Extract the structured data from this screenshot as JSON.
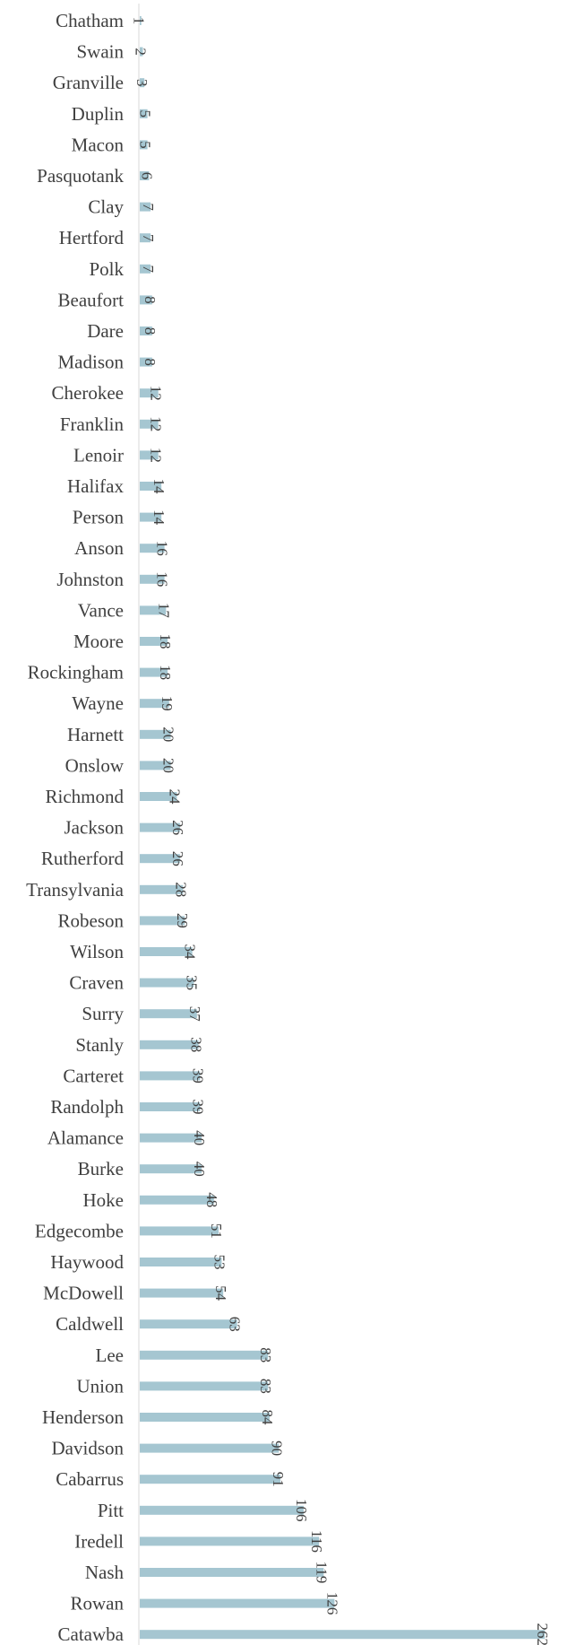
{
  "chart_data": {
    "type": "bar",
    "orientation": "horizontal",
    "categories": [
      "Chatham",
      "Swain",
      "Granville",
      "Duplin",
      "Macon",
      "Pasquotank",
      "Clay",
      "Hertford",
      "Polk",
      "Beaufort",
      "Dare",
      "Madison",
      "Cherokee",
      "Franklin",
      "Lenoir",
      "Halifax",
      "Person",
      "Anson",
      "Johnston",
      "Vance",
      "Moore",
      "Rockingham",
      "Wayne",
      "Harnett",
      "Onslow",
      "Richmond",
      "Jackson",
      "Rutherford",
      "Transylvania",
      "Robeson",
      "Wilson",
      "Craven",
      "Surry",
      "Stanly",
      "Carteret",
      "Randolph",
      "Alamance",
      "Burke",
      "Hoke",
      "Edgecombe",
      "Haywood",
      "McDowell",
      "Caldwell",
      "Lee",
      "Union",
      "Henderson",
      "Davidson",
      "Cabarrus",
      "Pitt",
      "Iredell",
      "Nash",
      "Rowan",
      "Catawba"
    ],
    "values": [
      1,
      2,
      3,
      5,
      5,
      6,
      7,
      7,
      7,
      8,
      8,
      8,
      12,
      12,
      12,
      14,
      14,
      16,
      16,
      17,
      18,
      18,
      19,
      20,
      20,
      24,
      26,
      26,
      28,
      29,
      34,
      35,
      37,
      38,
      39,
      39,
      40,
      40,
      48,
      51,
      53,
      54,
      63,
      83,
      83,
      84,
      90,
      91,
      106,
      116,
      119,
      126,
      262
    ],
    "xlim": [
      0,
      262
    ],
    "grid": false,
    "legend": "none",
    "data_labels": true,
    "bar_color": "#a5c6d1",
    "axis_color": "#d9d9d9",
    "text_color": "#404040"
  }
}
